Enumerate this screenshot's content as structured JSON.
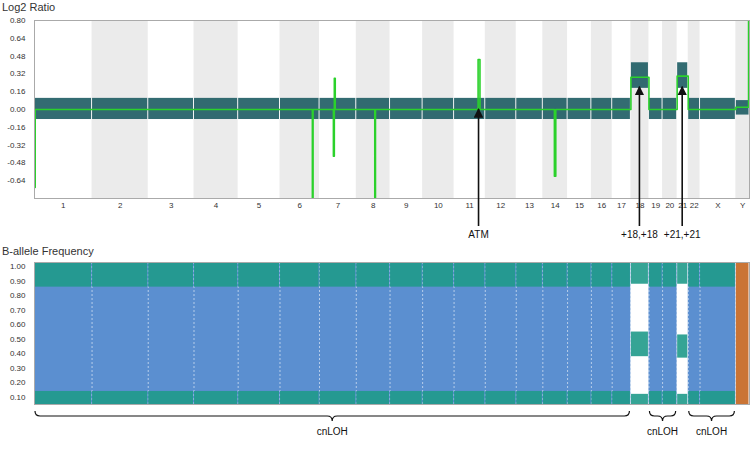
{
  "chart_data": [
    {
      "type": "scatter",
      "title": "Log2 Ratio",
      "categories": [
        "1",
        "2",
        "3",
        "4",
        "5",
        "6",
        "7",
        "8",
        "9",
        "10",
        "11",
        "12",
        "13",
        "14",
        "15",
        "16",
        "17",
        "18",
        "19",
        "20",
        "21",
        "22",
        "X",
        "Y"
      ],
      "sizes": [
        249,
        243,
        198,
        191,
        181,
        171,
        159,
        146,
        141,
        136,
        135,
        134,
        115,
        107,
        103,
        90,
        81,
        78,
        59,
        63,
        48,
        51,
        155,
        59
      ],
      "ylim": [
        -0.8,
        0.8
      ],
      "yticks": [
        {
          "value": 0.8,
          "label": "0.80"
        },
        {
          "value": 0.64,
          "label": "0.64"
        },
        {
          "value": 0.48,
          "label": "0.48"
        },
        {
          "value": 0.32,
          "label": "0.32"
        },
        {
          "value": 0.16,
          "label": "0.16"
        },
        {
          "value": 0,
          "label": "0.00"
        },
        {
          "value": -0.16,
          "label": "-0.16"
        },
        {
          "value": -0.32,
          "label": "-0.32"
        },
        {
          "value": -0.48,
          "label": "-0.48"
        },
        {
          "value": -0.64,
          "label": "-0.64"
        }
      ],
      "points": {
        "color": "#1d5c63",
        "rows": [
          [
            "1",
            -0.09,
            0.1
          ],
          [
            "2",
            -0.09,
            0.1
          ],
          [
            "3",
            -0.09,
            0.1
          ],
          [
            "4",
            -0.09,
            0.1
          ],
          [
            "5",
            -0.09,
            0.1
          ],
          [
            "6",
            -0.09,
            0.1
          ],
          [
            "7",
            -0.09,
            0.1
          ],
          [
            "8",
            -0.09,
            0.1
          ],
          [
            "9",
            -0.09,
            0.1
          ],
          [
            "10",
            -0.09,
            0.1
          ],
          [
            "11",
            -0.09,
            0.1
          ],
          [
            "12",
            -0.09,
            0.1
          ],
          [
            "13",
            -0.09,
            0.1
          ],
          [
            "14",
            -0.09,
            0.1
          ],
          [
            "15",
            -0.09,
            0.1
          ],
          [
            "16",
            -0.09,
            0.1
          ],
          [
            "17",
            -0.09,
            0.1
          ],
          [
            "18",
            0.19,
            0.42
          ],
          [
            "19",
            -0.09,
            0.1
          ],
          [
            "20",
            -0.09,
            0.1
          ],
          [
            "21",
            0.19,
            0.42
          ],
          [
            "22",
            -0.09,
            0.1
          ],
          [
            "X",
            -0.09,
            0.1
          ],
          [
            "Y",
            -0.05,
            0.08
          ]
        ]
      },
      "segments": {
        "color": "#2bd12b",
        "rows": [
          [
            "1",
            0,
            3,
            -0.7
          ],
          [
            "1",
            3,
            249,
            0
          ],
          [
            "2",
            0,
            243,
            0
          ],
          [
            "3",
            0,
            198,
            0
          ],
          [
            "4",
            0,
            191,
            0
          ],
          [
            "5",
            0,
            181,
            0
          ],
          [
            "6",
            0,
            140,
            0
          ],
          [
            "6",
            140,
            143,
            -0.8
          ],
          [
            "6",
            143,
            171,
            0
          ],
          [
            "7",
            0,
            60,
            0
          ],
          [
            "7",
            60,
            64,
            -0.42
          ],
          [
            "7",
            64,
            68,
            0.28
          ],
          [
            "7",
            68,
            159,
            0
          ],
          [
            "8",
            0,
            80,
            0
          ],
          [
            "8",
            80,
            83,
            -0.8
          ],
          [
            "8",
            83,
            146,
            0
          ],
          [
            "9",
            0,
            141,
            0
          ],
          [
            "10",
            0,
            136,
            0
          ],
          [
            "11",
            0,
            104,
            0
          ],
          [
            "11",
            104,
            112,
            0.45
          ],
          [
            "11",
            112,
            135,
            0
          ],
          [
            "12",
            0,
            134,
            0
          ],
          [
            "13",
            0,
            115,
            0
          ],
          [
            "14",
            0,
            50,
            0
          ],
          [
            "14",
            50,
            56,
            -0.6
          ],
          [
            "14",
            56,
            107,
            0
          ],
          [
            "15",
            0,
            103,
            0
          ],
          [
            "16",
            0,
            90,
            0
          ],
          [
            "17",
            0,
            81,
            0
          ],
          [
            "18",
            0,
            78,
            0.29
          ],
          [
            "19",
            0,
            59,
            0
          ],
          [
            "20",
            0,
            63,
            0
          ],
          [
            "21",
            0,
            48,
            0.3
          ],
          [
            "22",
            0,
            51,
            0
          ],
          [
            "X",
            0,
            155,
            0
          ],
          [
            "Y",
            0,
            55,
            0.02
          ],
          [
            "Y",
            55,
            59,
            0.8
          ]
        ]
      },
      "annotations": [
        {
          "text": "ATM",
          "chrom": "11",
          "pos": 108,
          "y": 0
        },
        {
          "text": "+18,+18",
          "chrom": "18",
          "pos": 39,
          "y": 0.2
        },
        {
          "text": "+21,+21",
          "chrom": "21",
          "pos": 24,
          "y": 0.2
        }
      ]
    },
    {
      "type": "scatter",
      "title": "B-allele Frequency",
      "categories": [
        "1",
        "2",
        "3",
        "4",
        "5",
        "6",
        "7",
        "8",
        "9",
        "10",
        "11",
        "12",
        "13",
        "14",
        "15",
        "16",
        "17",
        "18",
        "19",
        "20",
        "21",
        "22",
        "X",
        "Y"
      ],
      "sizes": [
        249,
        243,
        198,
        191,
        181,
        171,
        159,
        146,
        141,
        136,
        135,
        134,
        115,
        107,
        103,
        90,
        81,
        78,
        59,
        63,
        48,
        51,
        155,
        59
      ],
      "ylim": [
        0.05,
        1.03
      ],
      "yticks": [
        {
          "value": 1,
          "label": "1.00"
        },
        {
          "value": 0.9,
          "label": "0.90"
        },
        {
          "value": 0.8,
          "label": "0.80"
        },
        {
          "value": 0.7,
          "label": "0.70"
        },
        {
          "value": 0.6,
          "label": "0.60"
        },
        {
          "value": 0.5,
          "label": "0.50"
        },
        {
          "value": 0.4,
          "label": "0.40"
        },
        {
          "value": 0.3,
          "label": "0.30"
        },
        {
          "value": 0.2,
          "label": "0.20"
        },
        {
          "value": 0.1,
          "label": "0.10"
        }
      ],
      "tick_labels": "y",
      "bands": [
        {
          "color": "#1f9a8a",
          "rows": [
            [
              "1",
              0.05,
              0.14
            ],
            [
              "1",
              0.86,
              1.03
            ],
            [
              "2",
              0.05,
              0.14
            ],
            [
              "2",
              0.86,
              1.03
            ],
            [
              "3",
              0.05,
              0.14
            ],
            [
              "3",
              0.86,
              1.03
            ],
            [
              "4",
              0.05,
              0.14
            ],
            [
              "4",
              0.86,
              1.03
            ],
            [
              "5",
              0.05,
              0.14
            ],
            [
              "5",
              0.86,
              1.03
            ],
            [
              "6",
              0.05,
              0.14
            ],
            [
              "6",
              0.86,
              1.03
            ],
            [
              "7",
              0.05,
              0.14
            ],
            [
              "7",
              0.86,
              1.03
            ],
            [
              "8",
              0.05,
              0.14
            ],
            [
              "8",
              0.86,
              1.03
            ],
            [
              "9",
              0.05,
              0.14
            ],
            [
              "9",
              0.86,
              1.03
            ],
            [
              "10",
              0.05,
              0.14
            ],
            [
              "10",
              0.86,
              1.03
            ],
            [
              "11",
              0.05,
              0.14
            ],
            [
              "11",
              0.86,
              1.03
            ],
            [
              "12",
              0.05,
              0.14
            ],
            [
              "12",
              0.86,
              1.03
            ],
            [
              "13",
              0.05,
              0.14
            ],
            [
              "13",
              0.86,
              1.03
            ],
            [
              "14",
              0.05,
              0.14
            ],
            [
              "14",
              0.86,
              1.03
            ],
            [
              "15",
              0.05,
              0.14
            ],
            [
              "15",
              0.86,
              1.03
            ],
            [
              "16",
              0.05,
              0.14
            ],
            [
              "16",
              0.86,
              1.03
            ],
            [
              "17",
              0.05,
              0.14
            ],
            [
              "17",
              0.86,
              1.03
            ],
            [
              "18",
              0.05,
              0.12
            ],
            [
              "18",
              0.38,
              0.55
            ],
            [
              "18",
              0.88,
              1.03
            ],
            [
              "19",
              0.05,
              0.14
            ],
            [
              "19",
              0.86,
              1.03
            ],
            [
              "20",
              0.05,
              0.14
            ],
            [
              "20",
              0.86,
              1.03
            ],
            [
              "21",
              0.05,
              0.12
            ],
            [
              "21",
              0.37,
              0.53
            ],
            [
              "21",
              0.88,
              1.03
            ],
            [
              "22",
              0.05,
              0.14
            ],
            [
              "22",
              0.86,
              1.03
            ],
            [
              "X",
              0.05,
              0.14
            ],
            [
              "X",
              0.86,
              1.03
            ]
          ]
        },
        {
          "color": "#c4651f",
          "rows": [
            [
              "Y",
              0.05,
              1.03
            ]
          ]
        }
      ],
      "regions": {
        "color": "#5b8fd0",
        "rows": [
          {
            "label": "cnLOH",
            "from": "1",
            "to": "17"
          },
          {
            "label": "cnLOH",
            "from": "19",
            "to": "20"
          },
          {
            "label": "cnLOH",
            "from": "22",
            "to": "X"
          }
        ]
      }
    }
  ]
}
